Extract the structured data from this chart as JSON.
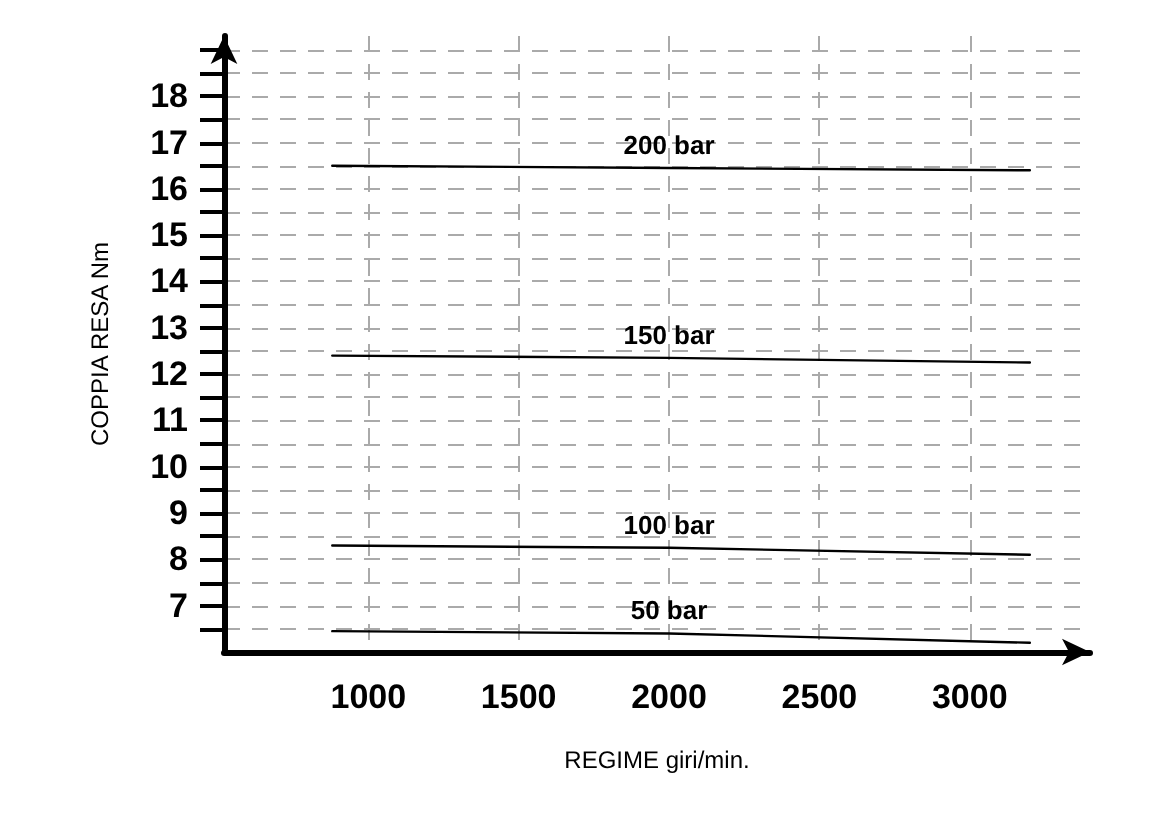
{
  "chart_data": {
    "type": "line",
    "xlabel": "REGIME giri/min.",
    "ylabel": "COPPIA RESA Nm",
    "series": [
      {
        "name": "200 bar",
        "color": "#000000",
        "x": [
          880,
          2000,
          3200
        ],
        "values": [
          16.5,
          16.45,
          16.4
        ]
      },
      {
        "name": "150 bar",
        "color": "#000000",
        "x": [
          880,
          2000,
          3200
        ],
        "values": [
          12.4,
          12.35,
          12.25
        ]
      },
      {
        "name": "100 bar",
        "color": "#000000",
        "x": [
          880,
          2000,
          3200
        ],
        "values": [
          8.3,
          8.25,
          8.1
        ]
      },
      {
        "name": "50 bar",
        "color": "#000000",
        "x": [
          880,
          2000,
          3200
        ],
        "values": [
          6.45,
          6.4,
          6.2
        ]
      }
    ],
    "xlim": [
      520,
      3400
    ],
    "xticks": [
      1000,
      1500,
      2000,
      2500,
      3000
    ],
    "ylim": [
      6,
      19.3
    ],
    "yticks": [
      {
        "value": 6.5,
        "label": null
      },
      7,
      {
        "value": 7.5,
        "label": null
      },
      8,
      {
        "value": 8.5,
        "label": null
      },
      9,
      {
        "value": 9.5,
        "label": null
      },
      10,
      {
        "value": 10.5,
        "label": null
      },
      11,
      {
        "value": 11.5,
        "label": null
      },
      12,
      {
        "value": 12.5,
        "label": null
      },
      13,
      {
        "value": 13.5,
        "label": null
      },
      14,
      {
        "value": 14.5,
        "label": null
      },
      15,
      {
        "value": 15.5,
        "label": null
      },
      16,
      {
        "value": 16.5,
        "label": null
      },
      17,
      {
        "value": 17.5,
        "label": null
      },
      18,
      {
        "value": 18.5,
        "label": null
      },
      {
        "value": 19,
        "label": null
      }
    ],
    "grid": true,
    "legend": false,
    "marker": "none",
    "line_style": "solid"
  }
}
